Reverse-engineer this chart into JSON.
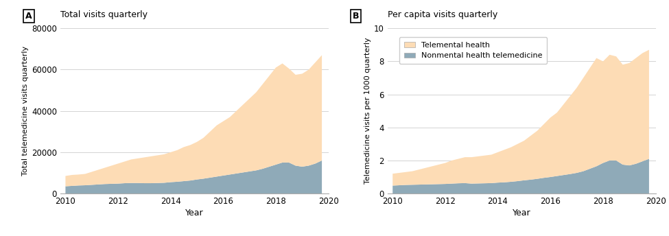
{
  "title_A": "Total visits quarterly",
  "title_B": "Per capita visits quarterly",
  "ylabel_A": "Total telemedicine visits quarterly",
  "ylabel_B": "Telemedicine visits per 1000 quarterly",
  "xlabel": "Year",
  "legend_label_mental": "Telemental health",
  "legend_label_nonmental": "Nonmental health telemedicine",
  "color_mental": "#FDDCB5",
  "color_nonmental": "#8FAAB8",
  "ylim_A": [
    0,
    80000
  ],
  "ylim_B": [
    0,
    10
  ],
  "yticks_A": [
    0,
    20000,
    40000,
    60000,
    80000
  ],
  "yticks_B": [
    0,
    2,
    4,
    6,
    8,
    10
  ],
  "xticks": [
    2010,
    2012,
    2014,
    2016,
    2018,
    2020
  ],
  "quarters": [
    2010.0,
    2010.25,
    2010.5,
    2010.75,
    2011.0,
    2011.25,
    2011.5,
    2011.75,
    2012.0,
    2012.25,
    2012.5,
    2012.75,
    2013.0,
    2013.25,
    2013.5,
    2013.75,
    2014.0,
    2014.25,
    2014.5,
    2014.75,
    2015.0,
    2015.25,
    2015.5,
    2015.75,
    2016.0,
    2016.25,
    2016.5,
    2016.75,
    2017.0,
    2017.25,
    2017.5,
    2017.75,
    2018.0,
    2018.25,
    2018.5,
    2018.75,
    2019.0,
    2019.25,
    2019.5,
    2019.75
  ],
  "total_mental": [
    8500,
    9000,
    9200,
    9500,
    10500,
    11500,
    12500,
    13500,
    14500,
    15500,
    16500,
    17000,
    17500,
    18000,
    18500,
    19000,
    20000,
    21000,
    22500,
    23500,
    25000,
    27000,
    30000,
    33000,
    35000,
    37000,
    40000,
    43000,
    46000,
    49000,
    53000,
    57000,
    61000,
    63000,
    60500,
    57500,
    58000,
    60000,
    63500,
    67000
  ],
  "total_nonmental": [
    3500,
    3700,
    3900,
    4000,
    4200,
    4400,
    4600,
    4700,
    4800,
    5000,
    5100,
    5100,
    5000,
    5000,
    5100,
    5200,
    5500,
    5700,
    6000,
    6300,
    6800,
    7200,
    7700,
    8200,
    8700,
    9200,
    9700,
    10200,
    10700,
    11200,
    12000,
    13000,
    14000,
    15000,
    15000,
    13500,
    13000,
    13500,
    14500,
    16000
  ],
  "pc_mental": [
    1.2,
    1.25,
    1.3,
    1.35,
    1.45,
    1.55,
    1.65,
    1.75,
    1.85,
    2.0,
    2.1,
    2.2,
    2.2,
    2.25,
    2.3,
    2.35,
    2.5,
    2.65,
    2.8,
    3.0,
    3.2,
    3.5,
    3.8,
    4.2,
    4.6,
    4.9,
    5.4,
    5.9,
    6.4,
    7.0,
    7.6,
    8.2,
    8.0,
    8.4,
    8.3,
    7.8,
    7.9,
    8.2,
    8.5,
    8.7
  ],
  "pc_nonmental": [
    0.48,
    0.5,
    0.52,
    0.53,
    0.54,
    0.55,
    0.56,
    0.57,
    0.58,
    0.6,
    0.62,
    0.63,
    0.6,
    0.61,
    0.62,
    0.63,
    0.66,
    0.68,
    0.71,
    0.75,
    0.8,
    0.84,
    0.89,
    0.95,
    1.0,
    1.06,
    1.12,
    1.18,
    1.25,
    1.35,
    1.5,
    1.65,
    1.85,
    2.0,
    2.0,
    1.75,
    1.7,
    1.8,
    1.95,
    2.1
  ],
  "background_color": "#FFFFFF",
  "grid_color": "#CCCCCC",
  "spine_color": "#AAAAAA"
}
